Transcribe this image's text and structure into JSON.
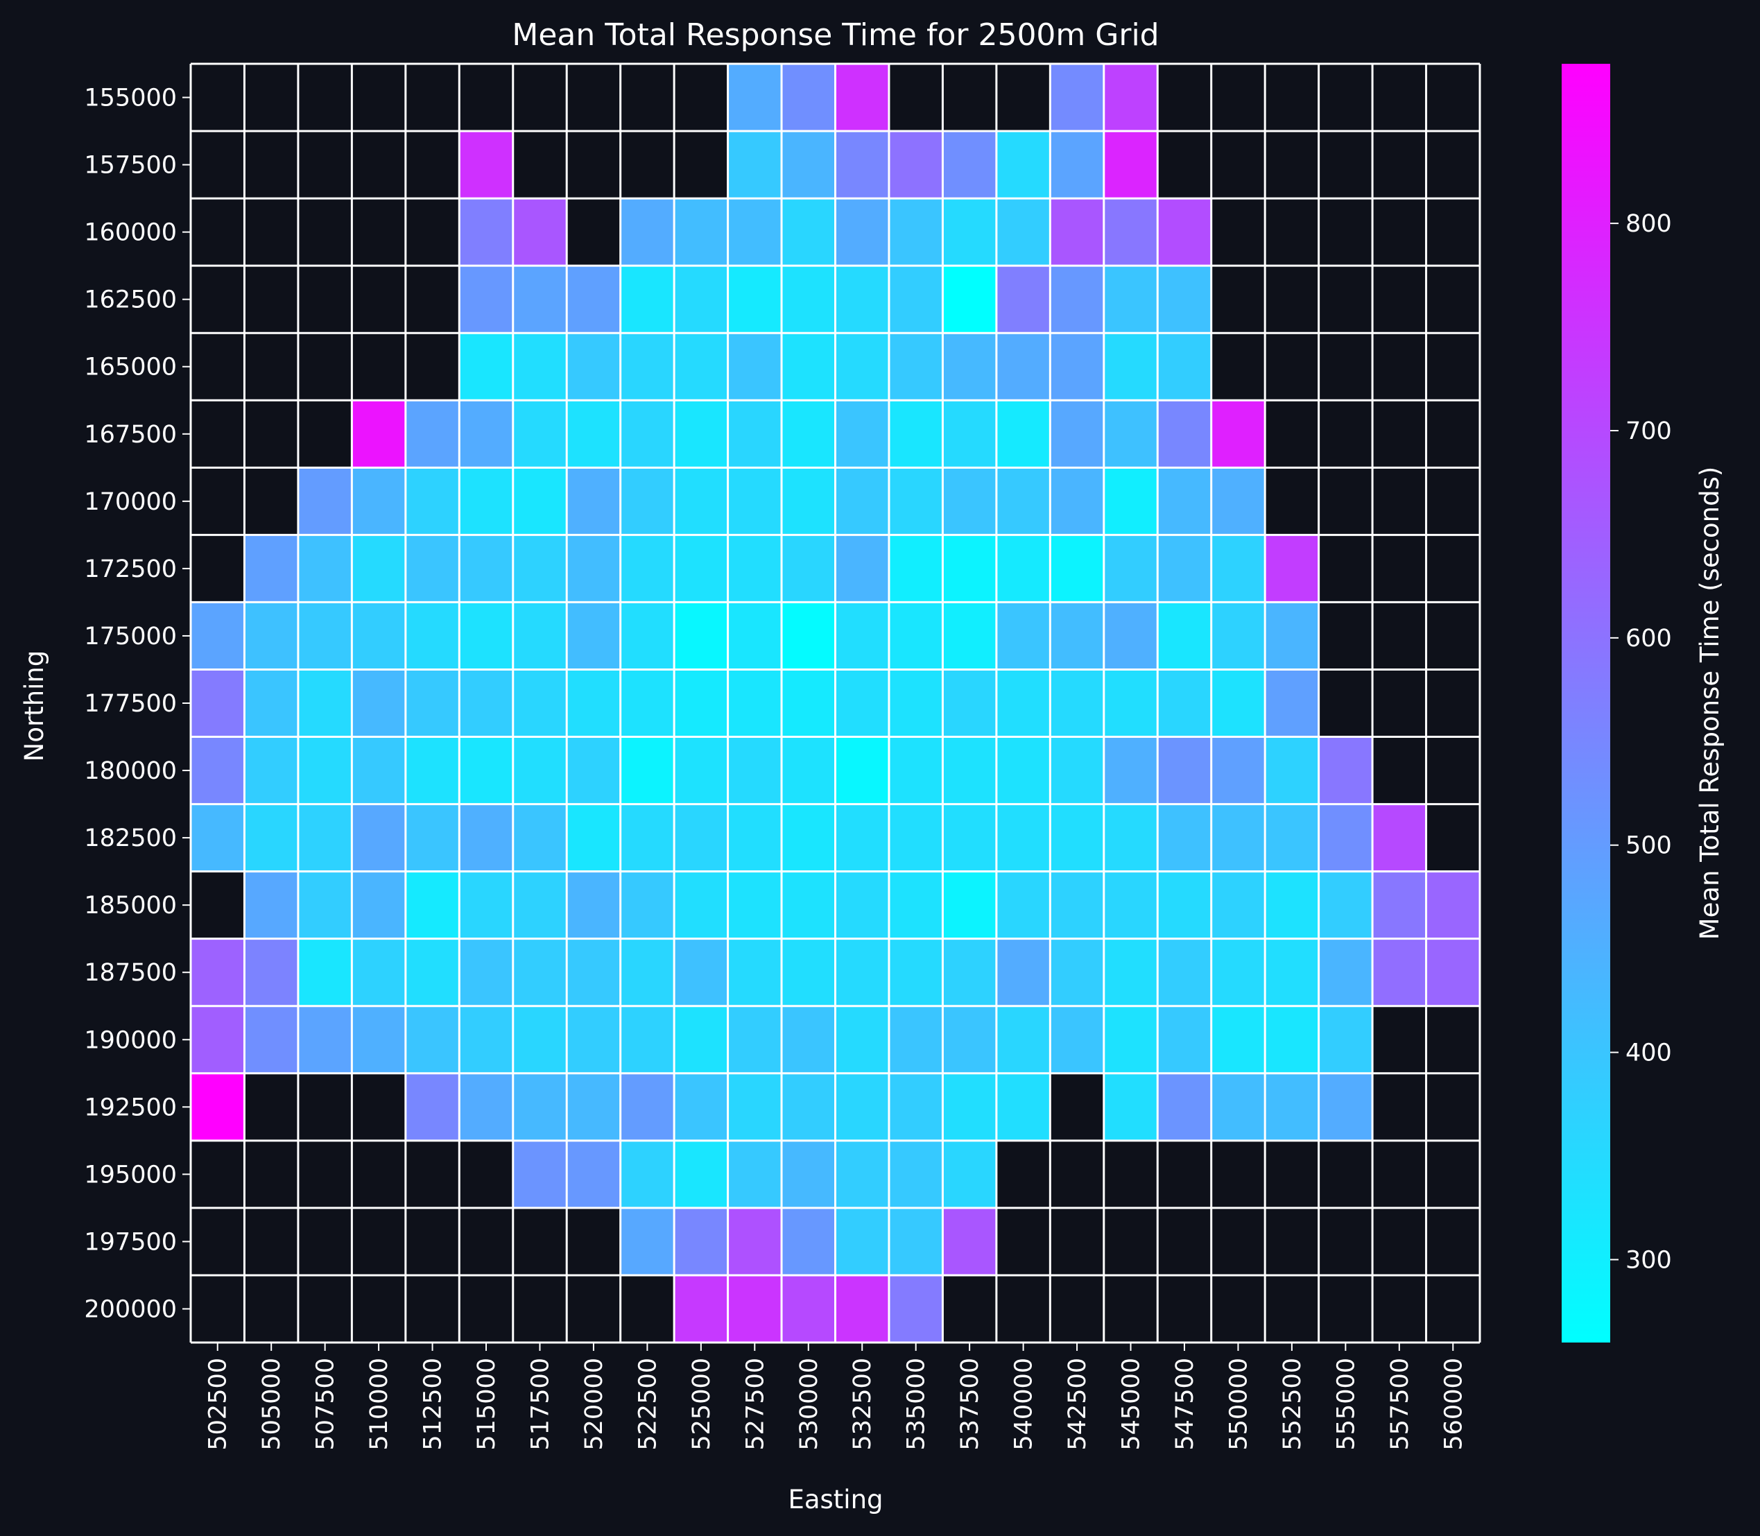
{
  "chart_data": {
    "type": "heatmap",
    "title": "Mean Total Response Time for 2500m Grid",
    "xlabel": "Easting",
    "ylabel": "Northing",
    "colorbar_label": "Mean Total Response Time (seconds)",
    "colormap": "cool",
    "vmin": 260,
    "vmax": 877,
    "colorbar_ticks": [
      300,
      400,
      500,
      600,
      700,
      800
    ],
    "missing_color": "#0e111a",
    "grid_line_color": "#ffffff",
    "x": [
      "502500",
      "505000",
      "507500",
      "510000",
      "512500",
      "515000",
      "517500",
      "520000",
      "522500",
      "525000",
      "527500",
      "530000",
      "532500",
      "535000",
      "537500",
      "540000",
      "542500",
      "545000",
      "547500",
      "550000",
      "552500",
      "555000",
      "557500",
      "560000"
    ],
    "y": [
      "155000",
      "157500",
      "160000",
      "162500",
      "165000",
      "167500",
      "170000",
      "172500",
      "175000",
      "177500",
      "180000",
      "182500",
      "185000",
      "187500",
      "190000",
      "192500",
      "195000",
      "197500",
      "200000"
    ],
    "values": [
      [
        null,
        null,
        null,
        null,
        null,
        null,
        null,
        null,
        null,
        null,
        460,
        530,
        760,
        null,
        null,
        null,
        540,
        720,
        null,
        null,
        null,
        null,
        null,
        null
      ],
      [
        null,
        null,
        null,
        null,
        null,
        760,
        null,
        null,
        null,
        null,
        390,
        440,
        550,
        600,
        530,
        350,
        480,
        790,
        null,
        null,
        null,
        null,
        null,
        null
      ],
      [
        null,
        null,
        null,
        null,
        null,
        570,
        670,
        null,
        460,
        420,
        420,
        360,
        460,
        400,
        350,
        380,
        670,
        590,
        690,
        null,
        null,
        null,
        null,
        null
      ],
      [
        null,
        null,
        null,
        null,
        null,
        510,
        480,
        490,
        320,
        350,
        310,
        330,
        350,
        380,
        260,
        570,
        510,
        400,
        410,
        null,
        null,
        null,
        null,
        null
      ],
      [
        null,
        null,
        null,
        null,
        null,
        320,
        340,
        390,
        360,
        350,
        400,
        330,
        350,
        390,
        430,
        460,
        480,
        350,
        380,
        null,
        null,
        null,
        null,
        null
      ],
      [
        null,
        null,
        null,
        830,
        480,
        460,
        350,
        330,
        360,
        320,
        360,
        320,
        400,
        320,
        350,
        310,
        470,
        410,
        550,
        800,
        null,
        null,
        null,
        null
      ],
      [
        null,
        null,
        500,
        440,
        370,
        330,
        320,
        450,
        380,
        340,
        350,
        330,
        390,
        360,
        400,
        390,
        440,
        300,
        430,
        450,
        null,
        null,
        null,
        null
      ],
      [
        null,
        490,
        410,
        350,
        400,
        390,
        370,
        420,
        350,
        330,
        340,
        360,
        440,
        300,
        290,
        310,
        290,
        380,
        410,
        370,
        730,
        null,
        null,
        null
      ],
      [
        480,
        410,
        390,
        380,
        350,
        330,
        350,
        420,
        340,
        280,
        320,
        270,
        340,
        320,
        300,
        400,
        420,
        450,
        320,
        370,
        440,
        null,
        null,
        null
      ],
      [
        580,
        400,
        350,
        430,
        390,
        380,
        360,
        340,
        330,
        310,
        320,
        310,
        340,
        330,
        360,
        340,
        350,
        340,
        360,
        330,
        490,
        null,
        null,
        null
      ],
      [
        550,
        380,
        350,
        390,
        330,
        320,
        340,
        370,
        290,
        330,
        350,
        330,
        280,
        330,
        330,
        330,
        350,
        450,
        520,
        490,
        370,
        590,
        null,
        null
      ],
      [
        430,
        360,
        370,
        470,
        400,
        450,
        400,
        320,
        350,
        360,
        340,
        320,
        340,
        340,
        340,
        340,
        340,
        350,
        410,
        410,
        400,
        530,
        700,
        null
      ],
      [
        null,
        470,
        380,
        440,
        310,
        360,
        370,
        440,
        390,
        340,
        330,
        330,
        350,
        330,
        290,
        360,
        370,
        360,
        350,
        370,
        330,
        380,
        590,
        630
      ],
      [
        640,
        560,
        320,
        370,
        340,
        400,
        380,
        390,
        360,
        410,
        350,
        340,
        350,
        350,
        370,
        460,
        380,
        340,
        380,
        350,
        340,
        440,
        610,
        630
      ],
      [
        650,
        530,
        480,
        450,
        400,
        380,
        360,
        380,
        370,
        330,
        380,
        400,
        350,
        400,
        400,
        360,
        400,
        330,
        390,
        320,
        320,
        380,
        null,
        null
      ],
      [
        877,
        null,
        null,
        null,
        550,
        460,
        430,
        430,
        500,
        400,
        360,
        380,
        360,
        380,
        340,
        340,
        null,
        340,
        520,
        420,
        420,
        460,
        null,
        null
      ],
      [
        null,
        null,
        null,
        null,
        null,
        null,
        520,
        510,
        370,
        320,
        390,
        430,
        380,
        390,
        360,
        null,
        null,
        null,
        null,
        null,
        null,
        null,
        null,
        null
      ],
      [
        null,
        null,
        null,
        null,
        null,
        null,
        null,
        null,
        470,
        550,
        680,
        510,
        380,
        390,
        670,
        null,
        null,
        null,
        null,
        null,
        null,
        null,
        null,
        null
      ],
      [
        null,
        null,
        null,
        null,
        null,
        null,
        null,
        null,
        null,
        740,
        750,
        700,
        750,
        580,
        null,
        null,
        null,
        null,
        null,
        null,
        null,
        null,
        null,
        null
      ]
    ]
  }
}
